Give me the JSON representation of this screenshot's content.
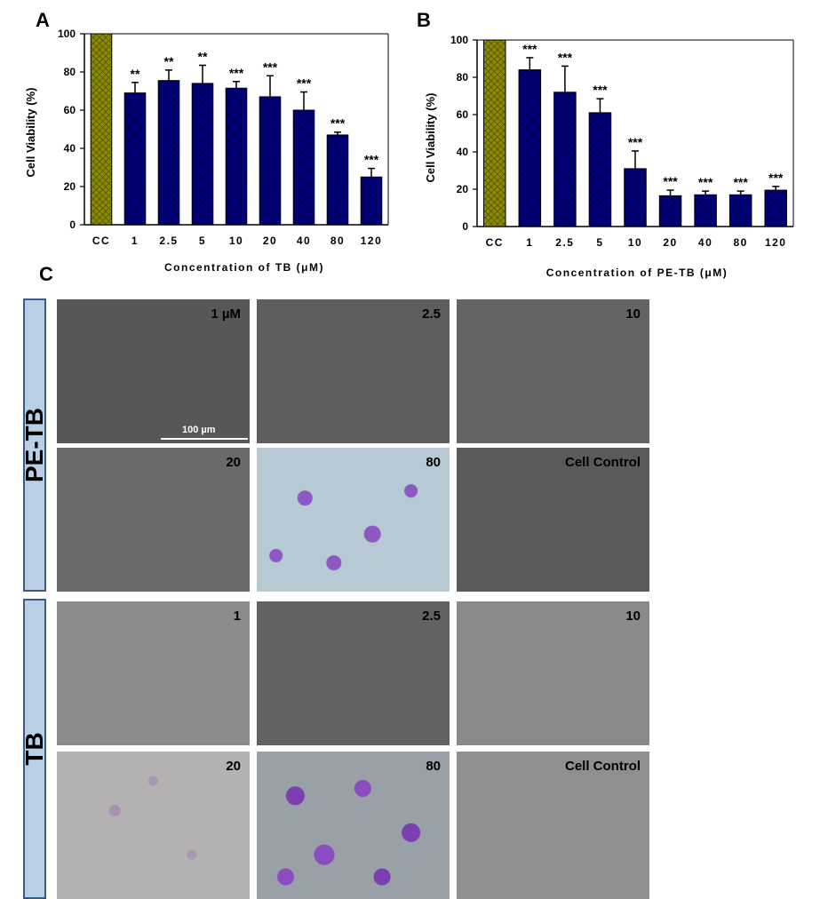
{
  "panels": {
    "a": "A",
    "b": "B",
    "c": "C"
  },
  "chart_data": [
    {
      "type": "bar",
      "panel": "A",
      "title": "",
      "xlabel": "Concentration of TB (μM)",
      "ylabel": "Cell Viability (%)",
      "ylim": [
        0,
        100
      ],
      "yticks": [
        0,
        20,
        40,
        60,
        80,
        100
      ],
      "categories": [
        "CC",
        "1",
        "2.5",
        "5",
        "10",
        "20",
        "40",
        "80",
        "120"
      ],
      "values": [
        100,
        69,
        75.5,
        74,
        71.5,
        67,
        60,
        47,
        25
      ],
      "errors": [
        0,
        5.5,
        5.5,
        9.5,
        3.5,
        11,
        9.5,
        1.5,
        4.5
      ],
      "significance": [
        "",
        "**",
        "**",
        "**",
        "***",
        "***",
        "***",
        "***",
        "***"
      ],
      "colors": {
        "control": "#8b8b00",
        "treated": "#00007f"
      }
    },
    {
      "type": "bar",
      "panel": "B",
      "title": "",
      "xlabel": "Concentration of PE-TB (μM)",
      "ylabel": "Cell Viability (%)",
      "ylim": [
        0,
        100
      ],
      "yticks": [
        0,
        20,
        40,
        60,
        80,
        100
      ],
      "categories": [
        "CC",
        "1",
        "2.5",
        "5",
        "10",
        "20",
        "40",
        "80",
        "120"
      ],
      "values": [
        100,
        84,
        72,
        61,
        31,
        16.5,
        17,
        17,
        19.5
      ],
      "errors": [
        0,
        6.5,
        14,
        7.5,
        9.5,
        3,
        2,
        2,
        2
      ],
      "significance": [
        "",
        "***",
        "***",
        "***",
        "***",
        "***",
        "***",
        "***",
        "***"
      ],
      "colors": {
        "control": "#8b8b00",
        "treated": "#00007f"
      }
    }
  ],
  "images": {
    "pe_tb_group": "PE-TB",
    "tb_group": "TB",
    "scale_bar": "100 µm",
    "pe_tb": [
      {
        "label": "1 µM",
        "tone": "#575757"
      },
      {
        "label": "2.5",
        "tone": "#5e5e5e"
      },
      {
        "label": "10",
        "tone": "#646464"
      },
      {
        "label": "20",
        "tone": "#6a6a6a"
      },
      {
        "label": "80",
        "tone": "#b7c9d2"
      },
      {
        "label": "Cell Control",
        "tone": "#5a5a5a"
      }
    ],
    "tb": [
      {
        "label": "1",
        "tone": "#8c8c8c"
      },
      {
        "label": "2.5",
        "tone": "#626262"
      },
      {
        "label": "10",
        "tone": "#8a8a8a"
      },
      {
        "label": "20",
        "tone": "#b4b1b2"
      },
      {
        "label": "80",
        "tone": "#9aa0a8"
      },
      {
        "label": "Cell Control",
        "tone": "#8f8f8f"
      }
    ]
  }
}
